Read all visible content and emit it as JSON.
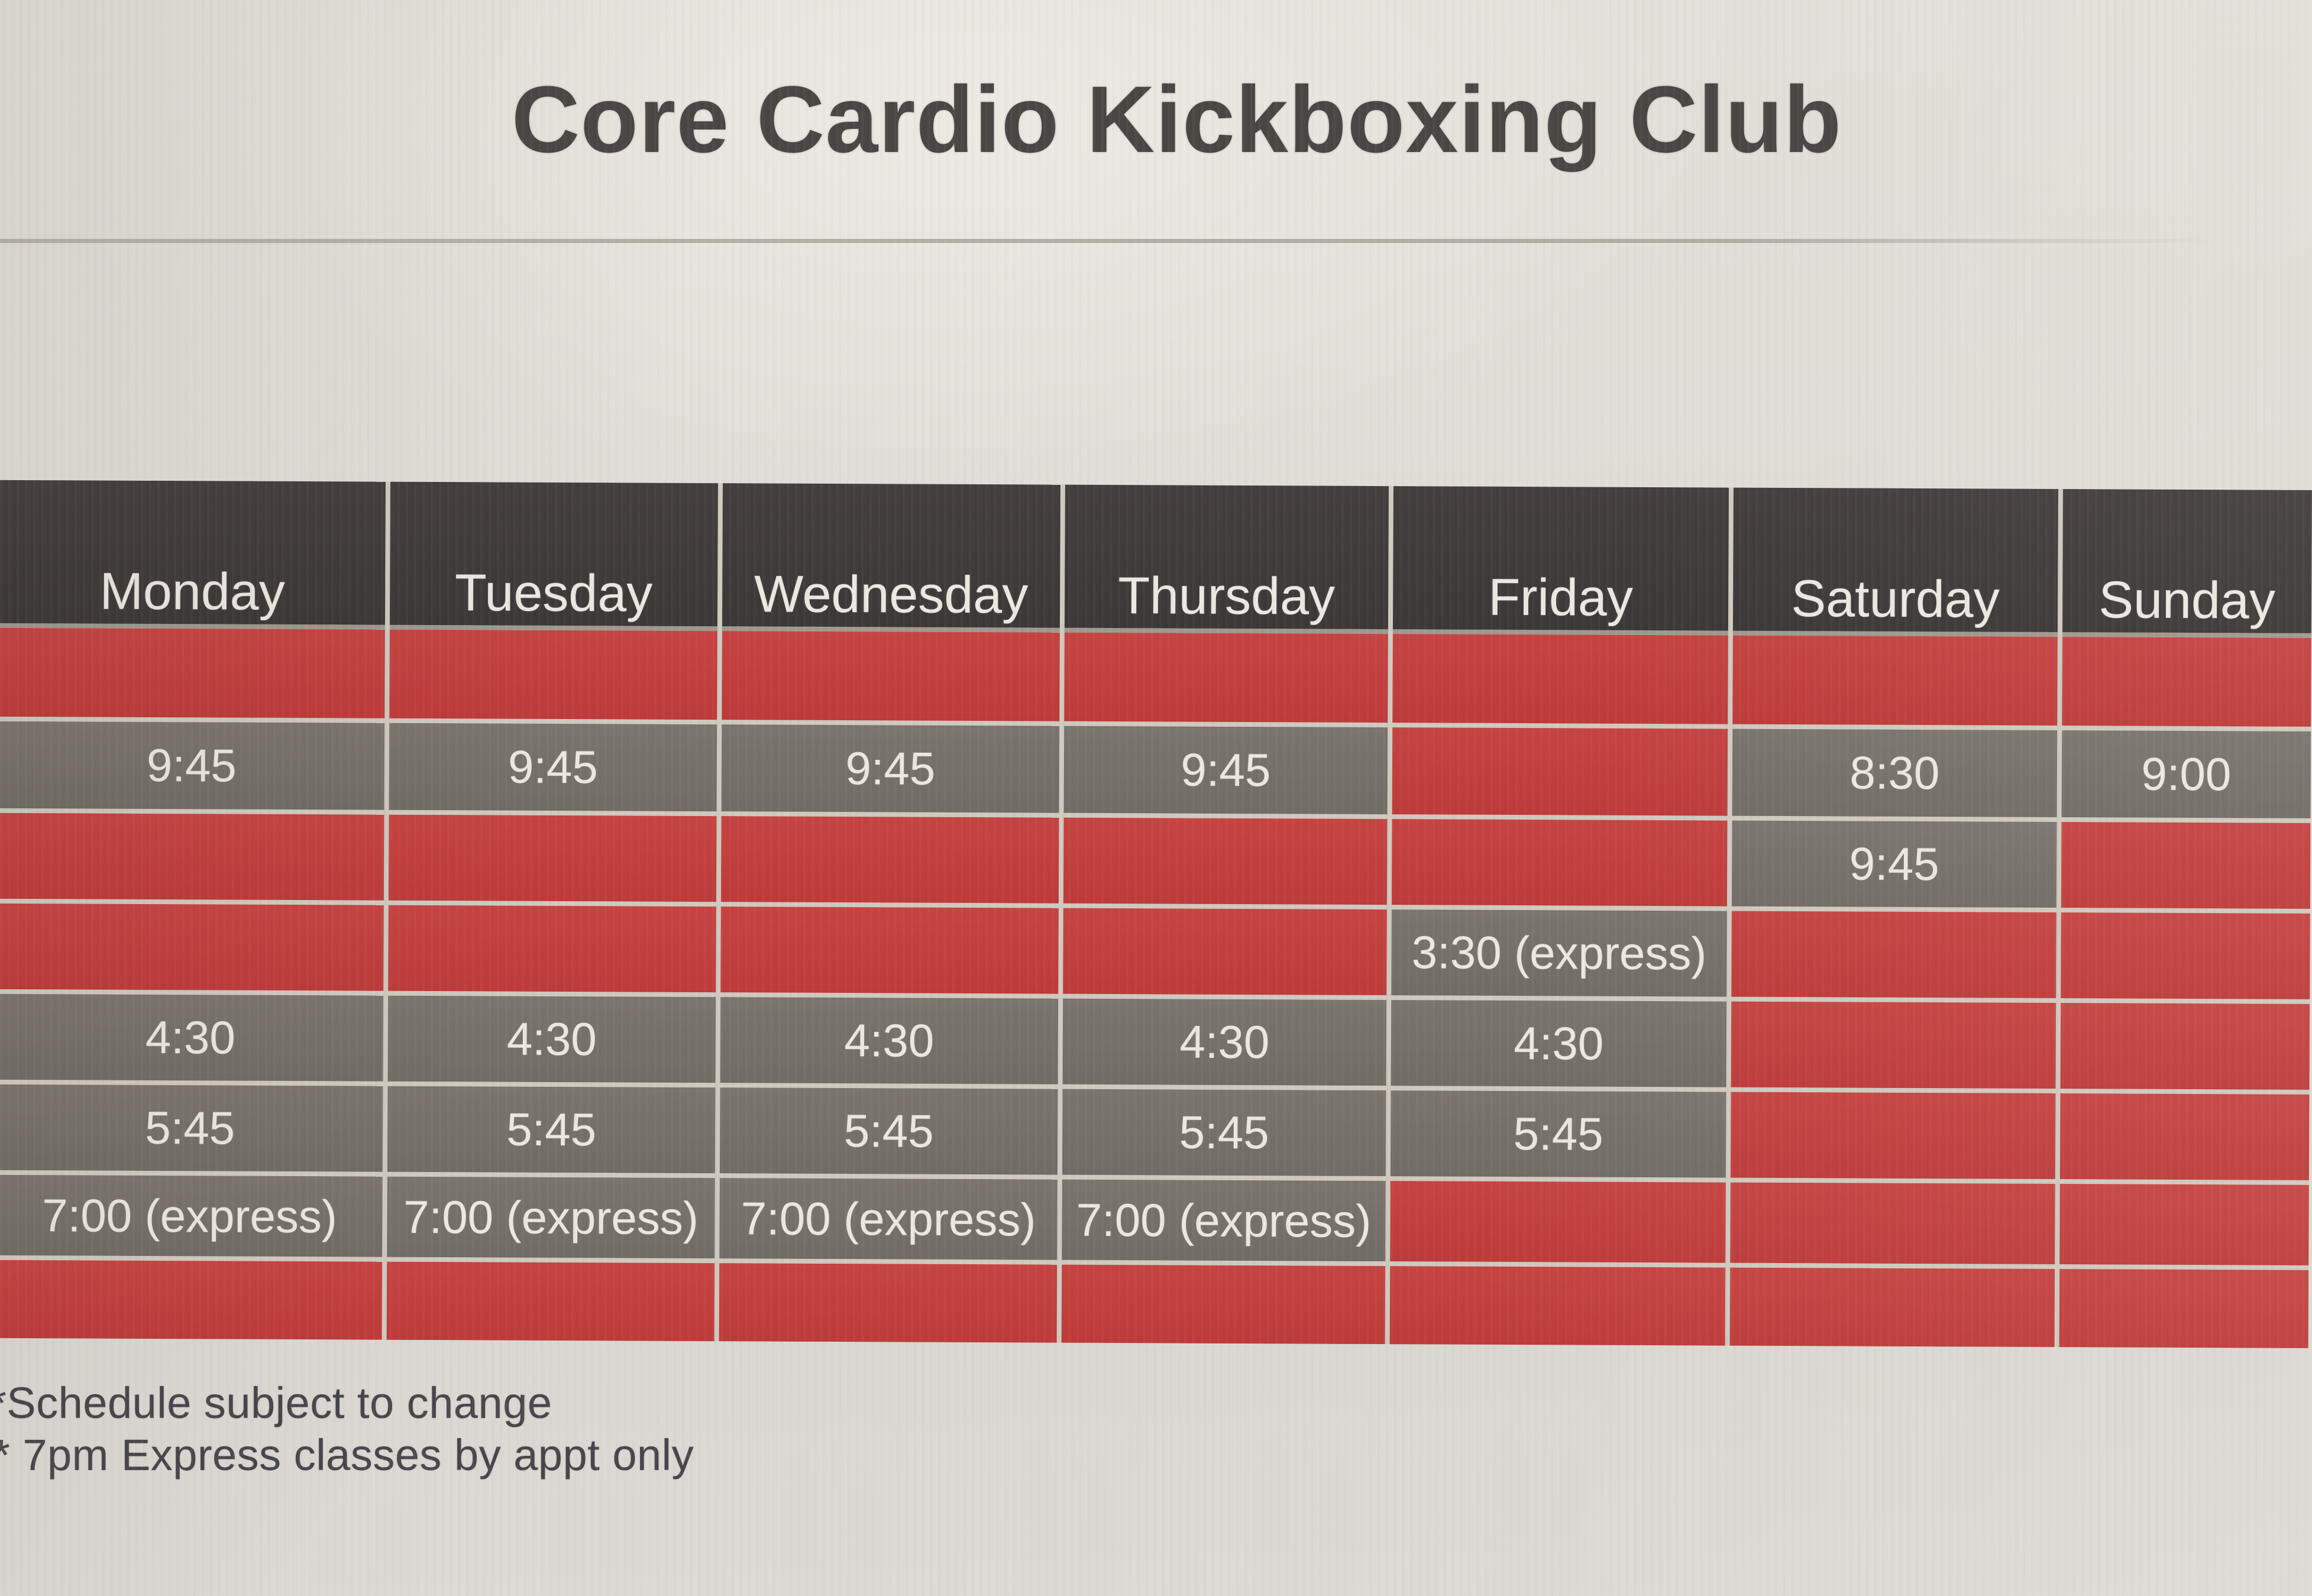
{
  "title": "Core Cardio Kickboxing Club",
  "schedule": {
    "days": [
      "Monday",
      "Tuesday",
      "Wednesday",
      "Thursday",
      "Friday",
      "Saturday",
      "Sunday"
    ],
    "rows": [
      {
        "cells": [
          "",
          "",
          "",
          "",
          "",
          "",
          ""
        ]
      },
      {
        "cells": [
          "9:45",
          "9:45",
          "9:45",
          "9:45",
          "",
          "8:30",
          "9:00"
        ]
      },
      {
        "cells": [
          "",
          "",
          "",
          "",
          "",
          "9:45",
          ""
        ]
      },
      {
        "cells": [
          "",
          "",
          "",
          "",
          "3:30 (express)",
          "",
          ""
        ]
      },
      {
        "cells": [
          "4:30",
          "4:30",
          "4:30",
          "4:30",
          "4:30",
          "",
          ""
        ]
      },
      {
        "cells": [
          "5:45",
          "5:45",
          "5:45",
          "5:45",
          "5:45",
          "",
          ""
        ]
      },
      {
        "cells": [
          "7:00 (express)",
          "7:00 (express)",
          "7:00 (express)",
          "7:00 (express)",
          "",
          "",
          ""
        ]
      },
      {
        "cells": [
          "",
          "",
          "",
          "",
          "",
          "",
          ""
        ]
      }
    ]
  },
  "footnotes": [
    "*Schedule subject to change",
    "* 7pm Express classes by appt only"
  ],
  "colors": {
    "paper": "#dfdcd6",
    "header_charcoal": "#3e3a39",
    "slot_gray": "#756f68",
    "empty_red": "#c13e3c",
    "grid_line": "#cfc9bf",
    "header_separator": "#9f988f",
    "cell_text": "#ece7df",
    "title_text": "#4a4544",
    "footnote_text": "#45454b"
  }
}
